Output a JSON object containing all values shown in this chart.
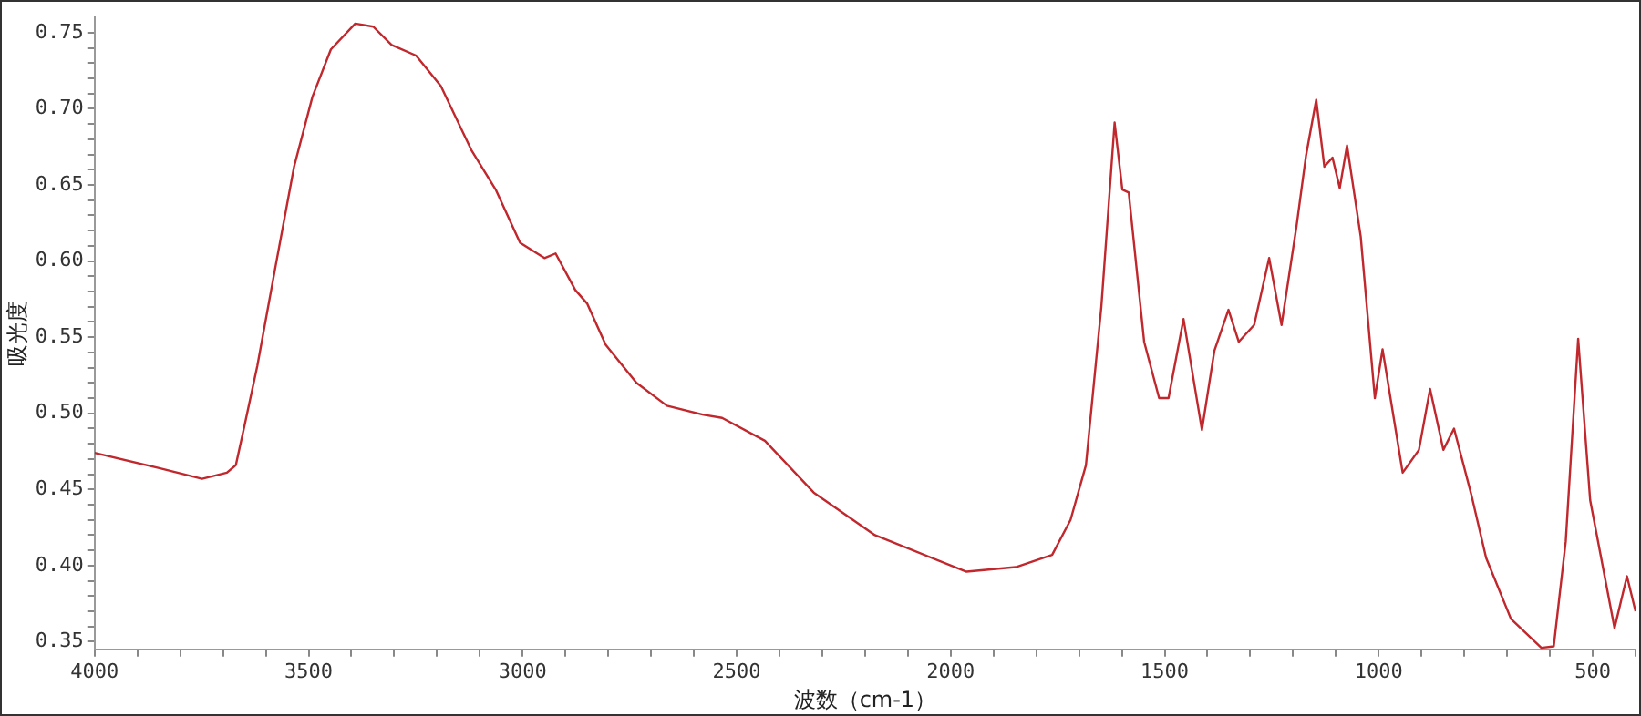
{
  "chart_data": {
    "type": "line",
    "xlabel": "波数（cm-1）",
    "ylabel": "吸光度",
    "grid": false,
    "legend": false,
    "marker": "none",
    "line_style": "solid",
    "xlim": [
      4000,
      400
    ],
    "ylim": [
      0.345,
      0.76
    ],
    "xticks": [
      4000,
      {
        "value": 3900,
        "label": null
      },
      {
        "value": 3800,
        "label": null
      },
      {
        "value": 3700,
        "label": null
      },
      {
        "value": 3600,
        "label": null
      },
      3500,
      {
        "value": 3400,
        "label": null
      },
      {
        "value": 3300,
        "label": null
      },
      {
        "value": 3200,
        "label": null
      },
      {
        "value": 3100,
        "label": null
      },
      3000,
      {
        "value": 2900,
        "label": null
      },
      {
        "value": 2800,
        "label": null
      },
      {
        "value": 2700,
        "label": null
      },
      {
        "value": 2600,
        "label": null
      },
      2500,
      {
        "value": 2400,
        "label": null
      },
      {
        "value": 2300,
        "label": null
      },
      {
        "value": 2200,
        "label": null
      },
      {
        "value": 2100,
        "label": null
      },
      2000,
      {
        "value": 1900,
        "label": null
      },
      {
        "value": 1800,
        "label": null
      },
      {
        "value": 1700,
        "label": null
      },
      {
        "value": 1600,
        "label": null
      },
      1500,
      {
        "value": 1400,
        "label": null
      },
      {
        "value": 1300,
        "label": null
      },
      {
        "value": 1200,
        "label": null
      },
      {
        "value": 1100,
        "label": null
      },
      1000,
      {
        "value": 900,
        "label": null
      },
      {
        "value": 800,
        "label": null
      },
      {
        "value": 700,
        "label": null
      },
      {
        "value": 600,
        "label": null
      },
      500,
      {
        "value": 400,
        "label": null
      }
    ],
    "yticks": [
      {
        "value": 0.35,
        "label": "0.35"
      },
      {
        "value": 0.36,
        "label": null
      },
      {
        "value": 0.37,
        "label": null
      },
      {
        "value": 0.38,
        "label": null
      },
      {
        "value": 0.39,
        "label": null
      },
      {
        "value": 0.4,
        "label": "0.40"
      },
      {
        "value": 0.41,
        "label": null
      },
      {
        "value": 0.42,
        "label": null
      },
      {
        "value": 0.43,
        "label": null
      },
      {
        "value": 0.44,
        "label": null
      },
      {
        "value": 0.45,
        "label": "0.45"
      },
      {
        "value": 0.46,
        "label": null
      },
      {
        "value": 0.47,
        "label": null
      },
      {
        "value": 0.48,
        "label": null
      },
      {
        "value": 0.49,
        "label": null
      },
      {
        "value": 0.5,
        "label": "0.50"
      },
      {
        "value": 0.51,
        "label": null
      },
      {
        "value": 0.52,
        "label": null
      },
      {
        "value": 0.53,
        "label": null
      },
      {
        "value": 0.54,
        "label": null
      },
      {
        "value": 0.55,
        "label": "0.55"
      },
      {
        "value": 0.56,
        "label": null
      },
      {
        "value": 0.57,
        "label": null
      },
      {
        "value": 0.58,
        "label": null
      },
      {
        "value": 0.59,
        "label": null
      },
      {
        "value": 0.6,
        "label": "0.60"
      },
      {
        "value": 0.61,
        "label": null
      },
      {
        "value": 0.62,
        "label": null
      },
      {
        "value": 0.63,
        "label": null
      },
      {
        "value": 0.64,
        "label": null
      },
      {
        "value": 0.65,
        "label": "0.65"
      },
      {
        "value": 0.66,
        "label": null
      },
      {
        "value": 0.67,
        "label": null
      },
      {
        "value": 0.68,
        "label": null
      },
      {
        "value": 0.69,
        "label": null
      },
      {
        "value": 0.7,
        "label": "0.70"
      },
      {
        "value": 0.71,
        "label": null
      },
      {
        "value": 0.72,
        "label": null
      },
      {
        "value": 0.73,
        "label": null
      },
      {
        "value": 0.74,
        "label": null
      },
      {
        "value": 0.75,
        "label": "0.75"
      }
    ],
    "series": [
      {
        "color": "#c0282d",
        "x": [
          4000,
          3849,
          3749,
          3691,
          3670,
          3649,
          3620,
          3577,
          3534,
          3491,
          3448,
          3391,
          3349,
          3306,
          3249,
          3191,
          3120,
          3063,
          3006,
          2949,
          2923,
          2877,
          2849,
          2806,
          2734,
          2663,
          2577,
          2534,
          2434,
          2320,
          2177,
          1963,
          1848,
          1763,
          1720,
          1684,
          1648,
          1617,
          1599,
          1584,
          1548,
          1513,
          1491,
          1456,
          1413,
          1384,
          1351,
          1327,
          1291,
          1256,
          1227,
          1192,
          1170,
          1146,
          1127,
          1108,
          1091,
          1074,
          1042,
          1009,
          991,
          944,
          906,
          880,
          849,
          824,
          784,
          749,
          691,
          620,
          591,
          563,
          534,
          506,
          449,
          420,
          400
        ],
        "values": [
          0.474,
          0.464,
          0.457,
          0.461,
          0.466,
          0.493,
          0.531,
          0.597,
          0.662,
          0.708,
          0.739,
          0.756,
          0.754,
          0.742,
          0.735,
          0.715,
          0.673,
          0.647,
          0.612,
          0.602,
          0.605,
          0.581,
          0.572,
          0.545,
          0.52,
          0.505,
          0.499,
          0.497,
          0.482,
          0.448,
          0.42,
          0.396,
          0.399,
          0.407,
          0.43,
          0.466,
          0.57,
          0.691,
          0.647,
          0.645,
          0.547,
          0.51,
          0.51,
          0.562,
          0.489,
          0.541,
          0.568,
          0.547,
          0.558,
          0.602,
          0.558,
          0.623,
          0.669,
          0.706,
          0.662,
          0.668,
          0.648,
          0.676,
          0.616,
          0.51,
          0.542,
          0.461,
          0.476,
          0.516,
          0.476,
          0.49,
          0.447,
          0.405,
          0.365,
          0.346,
          0.347,
          0.416,
          0.549,
          0.443,
          0.359,
          0.393,
          0.37
        ]
      }
    ]
  }
}
